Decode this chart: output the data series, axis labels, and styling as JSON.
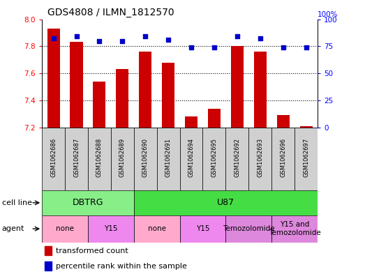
{
  "title": "GDS4808 / ILMN_1812570",
  "samples": [
    "GSM1062686",
    "GSM1062687",
    "GSM1062688",
    "GSM1062689",
    "GSM1062690",
    "GSM1062691",
    "GSM1062694",
    "GSM1062695",
    "GSM1062692",
    "GSM1062693",
    "GSM1062696",
    "GSM1062697"
  ],
  "transformed_count": [
    7.93,
    7.83,
    7.54,
    7.63,
    7.76,
    7.68,
    7.28,
    7.34,
    7.8,
    7.76,
    7.29,
    7.21
  ],
  "percentile_rank": [
    82,
    84,
    80,
    80,
    84,
    81,
    74,
    74,
    84,
    82,
    74,
    74
  ],
  "ylim_left": [
    7.2,
    8.0
  ],
  "ylim_right": [
    0,
    100
  ],
  "yticks_left": [
    7.2,
    7.4,
    7.6,
    7.8,
    8.0
  ],
  "yticks_right": [
    0,
    25,
    50,
    75,
    100
  ],
  "bar_color": "#CC0000",
  "dot_color": "#0000CC",
  "bar_bottom": 7.2,
  "cell_line_groups": [
    {
      "label": "DBTRG",
      "start": 0,
      "end": 4,
      "color": "#88EE88"
    },
    {
      "label": "U87",
      "start": 4,
      "end": 12,
      "color": "#44DD44"
    }
  ],
  "agent_groups": [
    {
      "label": "none",
      "start": 0,
      "end": 2,
      "color": "#FFAACC"
    },
    {
      "label": "Y15",
      "start": 2,
      "end": 4,
      "color": "#EE88EE"
    },
    {
      "label": "none",
      "start": 4,
      "end": 6,
      "color": "#FFAACC"
    },
    {
      "label": "Y15",
      "start": 6,
      "end": 8,
      "color": "#EE88EE"
    },
    {
      "label": "Temozolomide",
      "start": 8,
      "end": 10,
      "color": "#DD88DD"
    },
    {
      "label": "Y15 and\nTemozolomide",
      "start": 10,
      "end": 12,
      "color": "#DD88DD"
    }
  ],
  "legend_bar_label": "transformed count",
  "legend_dot_label": "percentile rank within the sample",
  "cell_line_label": "cell line",
  "agent_label": "agent",
  "grid_yticks": [
    7.4,
    7.6,
    7.8
  ],
  "background_color": "#FFFFFF",
  "sample_box_color": "#D0D0D0",
  "border_color": "#000000"
}
